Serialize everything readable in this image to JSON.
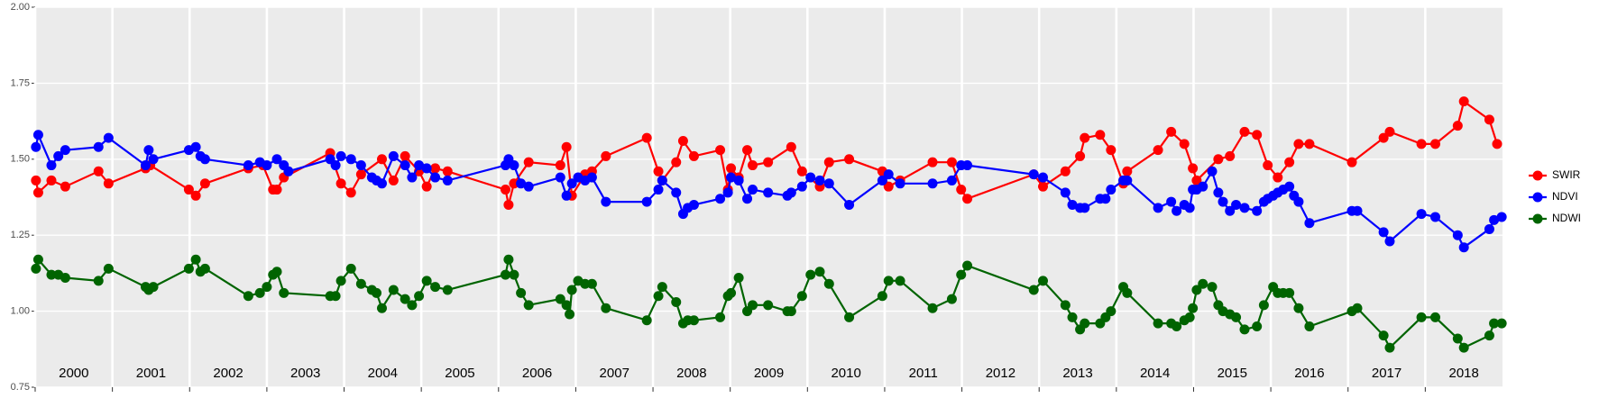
{
  "chart_data": {
    "type": "line",
    "xlim": [
      2000,
      2019
    ],
    "ylim": [
      0.75,
      2.0
    ],
    "yticks": [
      {
        "value": 0.75,
        "label": "0.75"
      },
      {
        "value": 1.0,
        "label": "1.00"
      },
      {
        "value": 1.25,
        "label": "1.25"
      },
      {
        "value": 1.5,
        "label": "1.50"
      },
      {
        "value": 1.75,
        "label": "1.75"
      },
      {
        "value": 2.0,
        "label": "2.00"
      }
    ],
    "xticks": [
      {
        "value": 2000.5,
        "label": "2000"
      },
      {
        "value": 2001.5,
        "label": "2001"
      },
      {
        "value": 2002.5,
        "label": "2002"
      },
      {
        "value": 2003.5,
        "label": "2003"
      },
      {
        "value": 2004.5,
        "label": "2004"
      },
      {
        "value": 2005.5,
        "label": "2005"
      },
      {
        "value": 2006.5,
        "label": "2006"
      },
      {
        "value": 2007.5,
        "label": "2007"
      },
      {
        "value": 2008.5,
        "label": "2008"
      },
      {
        "value": 2009.5,
        "label": "2009"
      },
      {
        "value": 2010.5,
        "label": "2010"
      },
      {
        "value": 2011.5,
        "label": "2011"
      },
      {
        "value": 2012.5,
        "label": "2012"
      },
      {
        "value": 2013.5,
        "label": "2013"
      },
      {
        "value": 2014.5,
        "label": "2014"
      },
      {
        "value": 2015.5,
        "label": "2015"
      },
      {
        "value": 2016.5,
        "label": "2016"
      },
      {
        "value": 2017.5,
        "label": "2017"
      },
      {
        "value": 2018.5,
        "label": "2018"
      }
    ],
    "year_boundaries": [
      2000,
      2001,
      2002,
      2003,
      2004,
      2005,
      2006,
      2007,
      2008,
      2009,
      2010,
      2011,
      2012,
      2013,
      2014,
      2015,
      2016,
      2017,
      2018
    ],
    "grid": true,
    "legend": "right",
    "series": [
      {
        "name": "SWIR",
        "color": "#ff0000",
        "x": [
          2000.01,
          2000.04,
          2000.21,
          2000.39,
          2000.82,
          2000.95,
          2001.43,
          2001.49,
          2001.99,
          2002.08,
          2002.2,
          2002.76,
          2002.95,
          2003.08,
          2003.13,
          2003.22,
          2003.82,
          2003.96,
          2004.09,
          2004.22,
          2004.49,
          2004.64,
          2004.79,
          2004.97,
          2005.07,
          2005.18,
          2005.34,
          2006.09,
          2006.13,
          2006.2,
          2006.39,
          2006.8,
          2006.88,
          2006.95,
          2007.12,
          2007.21,
          2007.39,
          2007.92,
          2008.07,
          2008.12,
          2008.3,
          2008.39,
          2008.53,
          2008.87,
          2008.97,
          2009.01,
          2009.11,
          2009.22,
          2009.29,
          2009.49,
          2009.79,
          2009.93,
          2010.16,
          2010.28,
          2010.54,
          2010.97,
          2011.05,
          2011.2,
          2011.62,
          2011.87,
          2011.99,
          2012.07,
          2012.93,
          2013.05,
          2013.34,
          2013.53,
          2013.59,
          2013.79,
          2013.93,
          2014.09,
          2014.14,
          2014.54,
          2014.71,
          2014.88,
          2014.99,
          2015.04,
          2015.32,
          2015.47,
          2015.66,
          2015.82,
          2015.96,
          2016.09,
          2016.24,
          2016.36,
          2016.5,
          2017.05,
          2017.46,
          2017.54,
          2017.95,
          2018.13,
          2018.42,
          2018.5,
          2018.83,
          2018.93
        ],
        "values": [
          1.43,
          1.39,
          1.43,
          1.41,
          1.46,
          1.42,
          1.47,
          1.48,
          1.4,
          1.38,
          1.42,
          1.47,
          1.48,
          1.4,
          1.4,
          1.44,
          1.52,
          1.42,
          1.39,
          1.45,
          1.5,
          1.43,
          1.51,
          1.46,
          1.41,
          1.47,
          1.46,
          1.4,
          1.35,
          1.42,
          1.49,
          1.48,
          1.54,
          1.38,
          1.45,
          1.46,
          1.51,
          1.57,
          1.46,
          1.43,
          1.49,
          1.56,
          1.51,
          1.53,
          1.4,
          1.47,
          1.44,
          1.53,
          1.48,
          1.49,
          1.54,
          1.46,
          1.41,
          1.49,
          1.5,
          1.46,
          1.41,
          1.43,
          1.49,
          1.49,
          1.4,
          1.37,
          1.45,
          1.41,
          1.46,
          1.51,
          1.57,
          1.58,
          1.53,
          1.42,
          1.46,
          1.53,
          1.59,
          1.55,
          1.47,
          1.43,
          1.5,
          1.51,
          1.59,
          1.58,
          1.48,
          1.44,
          1.49,
          1.55,
          1.55,
          1.49,
          1.57,
          1.59,
          1.55,
          1.55,
          1.61,
          1.69,
          1.63,
          1.55
        ]
      },
      {
        "name": "NDVI",
        "color": "#0000ff",
        "x": [
          2000.01,
          2000.04,
          2000.21,
          2000.3,
          2000.39,
          2000.82,
          2000.95,
          2001.43,
          2001.47,
          2001.53,
          2001.99,
          2002.08,
          2002.14,
          2002.2,
          2002.76,
          2002.91,
          2003.0,
          2003.13,
          2003.22,
          2003.28,
          2003.82,
          2003.89,
          2003.96,
          2004.09,
          2004.22,
          2004.36,
          2004.42,
          2004.49,
          2004.64,
          2004.79,
          2004.88,
          2004.97,
          2005.07,
          2005.18,
          2005.34,
          2006.09,
          2006.13,
          2006.2,
          2006.29,
          2006.39,
          2006.8,
          2006.88,
          2006.95,
          2007.03,
          2007.12,
          2007.21,
          2007.39,
          2007.92,
          2008.07,
          2008.12,
          2008.3,
          2008.39,
          2008.45,
          2008.53,
          2008.87,
          2008.97,
          2009.01,
          2009.11,
          2009.22,
          2009.29,
          2009.49,
          2009.74,
          2009.79,
          2009.93,
          2010.04,
          2010.16,
          2010.28,
          2010.54,
          2010.97,
          2011.05,
          2011.2,
          2011.62,
          2011.87,
          2011.99,
          2012.07,
          2012.93,
          2013.05,
          2013.34,
          2013.43,
          2013.53,
          2013.59,
          2013.79,
          2013.86,
          2013.93,
          2014.09,
          2014.14,
          2014.54,
          2014.71,
          2014.78,
          2014.88,
          2014.95,
          2014.99,
          2015.04,
          2015.12,
          2015.24,
          2015.32,
          2015.38,
          2015.47,
          2015.55,
          2015.66,
          2015.82,
          2015.91,
          2015.96,
          2016.03,
          2016.09,
          2016.16,
          2016.24,
          2016.3,
          2016.36,
          2016.5,
          2017.05,
          2017.12,
          2017.46,
          2017.54,
          2017.95,
          2018.13,
          2018.42,
          2018.5,
          2018.83,
          2018.89,
          2018.99
        ],
        "values": [
          1.54,
          1.58,
          1.48,
          1.51,
          1.53,
          1.54,
          1.57,
          1.48,
          1.53,
          1.5,
          1.53,
          1.54,
          1.51,
          1.5,
          1.48,
          1.49,
          1.48,
          1.5,
          1.48,
          1.46,
          1.5,
          1.48,
          1.51,
          1.5,
          1.48,
          1.44,
          1.43,
          1.42,
          1.51,
          1.48,
          1.44,
          1.48,
          1.47,
          1.44,
          1.43,
          1.48,
          1.5,
          1.48,
          1.42,
          1.41,
          1.44,
          1.38,
          1.42,
          1.44,
          1.43,
          1.44,
          1.36,
          1.36,
          1.4,
          1.43,
          1.39,
          1.32,
          1.34,
          1.35,
          1.37,
          1.39,
          1.44,
          1.43,
          1.37,
          1.4,
          1.39,
          1.38,
          1.39,
          1.41,
          1.44,
          1.43,
          1.42,
          1.35,
          1.43,
          1.45,
          1.42,
          1.42,
          1.43,
          1.48,
          1.48,
          1.45,
          1.44,
          1.39,
          1.35,
          1.34,
          1.34,
          1.37,
          1.37,
          1.4,
          1.43,
          1.43,
          1.34,
          1.36,
          1.33,
          1.35,
          1.34,
          1.4,
          1.4,
          1.41,
          1.46,
          1.39,
          1.36,
          1.33,
          1.35,
          1.34,
          1.33,
          1.36,
          1.37,
          1.38,
          1.39,
          1.4,
          1.41,
          1.38,
          1.36,
          1.29,
          1.33,
          1.33,
          1.26,
          1.23,
          1.32,
          1.31,
          1.25,
          1.21,
          1.27,
          1.3,
          1.31
        ]
      },
      {
        "name": "NDWI",
        "color": "#006400",
        "x": [
          2000.01,
          2000.04,
          2000.21,
          2000.3,
          2000.39,
          2000.82,
          2000.95,
          2001.43,
          2001.47,
          2001.53,
          2001.99,
          2002.08,
          2002.14,
          2002.2,
          2002.76,
          2002.91,
          2003.0,
          2003.08,
          2003.13,
          2003.22,
          2003.82,
          2003.89,
          2003.96,
          2004.09,
          2004.22,
          2004.36,
          2004.42,
          2004.49,
          2004.64,
          2004.79,
          2004.88,
          2004.97,
          2005.07,
          2005.18,
          2005.34,
          2006.09,
          2006.13,
          2006.2,
          2006.29,
          2006.39,
          2006.8,
          2006.88,
          2006.92,
          2006.95,
          2007.03,
          2007.12,
          2007.21,
          2007.39,
          2007.92,
          2008.07,
          2008.12,
          2008.3,
          2008.39,
          2008.45,
          2008.53,
          2008.87,
          2008.97,
          2009.01,
          2009.11,
          2009.22,
          2009.29,
          2009.49,
          2009.74,
          2009.79,
          2009.93,
          2010.04,
          2010.16,
          2010.28,
          2010.54,
          2010.97,
          2011.05,
          2011.2,
          2011.62,
          2011.87,
          2011.99,
          2012.07,
          2012.93,
          2013.05,
          2013.34,
          2013.43,
          2013.53,
          2013.59,
          2013.79,
          2013.86,
          2013.93,
          2014.09,
          2014.14,
          2014.54,
          2014.71,
          2014.78,
          2014.88,
          2014.95,
          2014.99,
          2015.04,
          2015.12,
          2015.24,
          2015.32,
          2015.38,
          2015.47,
          2015.55,
          2015.66,
          2015.82,
          2015.91,
          2016.03,
          2016.09,
          2016.16,
          2016.24,
          2016.36,
          2016.5,
          2017.05,
          2017.12,
          2017.46,
          2017.54,
          2017.95,
          2018.13,
          2018.42,
          2018.5,
          2018.83,
          2018.89,
          2018.99
        ],
        "values": [
          1.14,
          1.17,
          1.12,
          1.12,
          1.11,
          1.1,
          1.14,
          1.08,
          1.07,
          1.08,
          1.14,
          1.17,
          1.13,
          1.14,
          1.05,
          1.06,
          1.08,
          1.12,
          1.13,
          1.06,
          1.05,
          1.05,
          1.1,
          1.14,
          1.09,
          1.07,
          1.06,
          1.01,
          1.07,
          1.04,
          1.02,
          1.05,
          1.1,
          1.08,
          1.07,
          1.12,
          1.17,
          1.12,
          1.06,
          1.02,
          1.04,
          1.02,
          0.99,
          1.07,
          1.1,
          1.09,
          1.09,
          1.01,
          0.97,
          1.05,
          1.08,
          1.03,
          0.96,
          0.97,
          0.97,
          0.98,
          1.05,
          1.06,
          1.11,
          1.0,
          1.02,
          1.02,
          1.0,
          1.0,
          1.05,
          1.12,
          1.13,
          1.09,
          0.98,
          1.05,
          1.1,
          1.1,
          1.01,
          1.04,
          1.12,
          1.15,
          1.07,
          1.1,
          1.02,
          0.98,
          0.94,
          0.96,
          0.96,
          0.98,
          1.0,
          1.08,
          1.06,
          0.96,
          0.96,
          0.95,
          0.97,
          0.98,
          1.01,
          1.07,
          1.09,
          1.08,
          1.02,
          1.0,
          0.99,
          0.98,
          0.94,
          0.95,
          1.02,
          1.08,
          1.06,
          1.06,
          1.06,
          1.01,
          0.95,
          1.0,
          1.01,
          0.92,
          0.88,
          0.98,
          0.98,
          0.91,
          0.88,
          0.92,
          0.96,
          0.96
        ]
      }
    ]
  }
}
